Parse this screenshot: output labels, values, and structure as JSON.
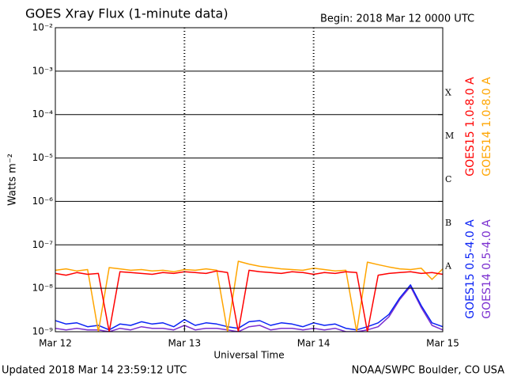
{
  "chart_data": {
    "type": "line",
    "title": "GOES Xray Flux (1-minute data)",
    "subtitle": "Begin:  2018 Mar 12 0000 UTC",
    "ylabel": "Watts m⁻²",
    "xlabel": "Universal Time",
    "footer_left": "Updated 2018 Mar 14 23:59:12 UTC",
    "footer_right": "NOAA/SWPC Boulder, CO USA",
    "yscale": "log",
    "grid": true,
    "legend_position": "right",
    "x": [
      0,
      2,
      4,
      6,
      8,
      10,
      12,
      14,
      16,
      18,
      20,
      22,
      24,
      26,
      28,
      30,
      32,
      34,
      36,
      38,
      40,
      42,
      44,
      46,
      48,
      50,
      52,
      54,
      56,
      58,
      60,
      62,
      64,
      66,
      68,
      70,
      72
    ],
    "xlim": [
      0,
      72
    ],
    "xticks": [
      {
        "value": 0,
        "label": "Mar 12"
      },
      {
        "value": 24,
        "label": "Mar 13"
      },
      {
        "value": 48,
        "label": "Mar 14"
      },
      {
        "value": 72,
        "label": "Mar 15"
      }
    ],
    "ylim": [
      1e-09,
      0.01
    ],
    "yticks": [
      {
        "value": 1e-09,
        "label": "10⁻⁹"
      },
      {
        "value": 1e-08,
        "label": "10⁻⁸"
      },
      {
        "value": 1e-07,
        "label": "10⁻⁷"
      },
      {
        "value": 1e-06,
        "label": "10⁻⁶"
      },
      {
        "value": 1e-05,
        "label": "10⁻⁵"
      },
      {
        "value": 0.0001,
        "label": "10⁻⁴"
      },
      {
        "value": 0.001,
        "label": "10⁻³"
      },
      {
        "value": 0.01,
        "label": "10⁻²"
      }
    ],
    "flare_classes": [
      {
        "value": 1e-08,
        "label": "A"
      },
      {
        "value": 1e-07,
        "label": "B"
      },
      {
        "value": 1e-06,
        "label": "C"
      },
      {
        "value": 1e-05,
        "label": "M"
      },
      {
        "value": 0.0001,
        "label": "X"
      }
    ],
    "series": [
      {
        "name": "GOES14 0.5-4.0 A",
        "color": "#7b2fd0",
        "values": [
          1.2e-09,
          1.1e-09,
          1.2e-09,
          1.1e-09,
          1.1e-09,
          1e-09,
          1.2e-09,
          1.1e-09,
          1.3e-09,
          1.2e-09,
          1.2e-09,
          1.1e-09,
          1.4e-09,
          1.1e-09,
          1.2e-09,
          1.2e-09,
          1.1e-09,
          1e-09,
          1.3e-09,
          1.4e-09,
          1.1e-09,
          1.2e-09,
          1.2e-09,
          1.1e-09,
          1.2e-09,
          1.1e-09,
          1.2e-09,
          1e-09,
          1e-09,
          1.1e-09,
          1.3e-09,
          2.2e-09,
          5.5e-09,
          1.1e-08,
          3.6e-09,
          1.4e-09,
          1.1e-09
        ]
      },
      {
        "name": "GOES15 0.5-4.0 A",
        "color": "#0a22f5",
        "values": [
          1.8e-09,
          1.5e-09,
          1.6e-09,
          1.3e-09,
          1.4e-09,
          1.1e-09,
          1.5e-09,
          1.4e-09,
          1.7e-09,
          1.5e-09,
          1.6e-09,
          1.3e-09,
          1.9e-09,
          1.4e-09,
          1.6e-09,
          1.5e-09,
          1.3e-09,
          1.2e-09,
          1.7e-09,
          1.8e-09,
          1.4e-09,
          1.6e-09,
          1.5e-09,
          1.3e-09,
          1.6e-09,
          1.4e-09,
          1.5e-09,
          1.2e-09,
          1.1e-09,
          1.3e-09,
          1.6e-09,
          2.5e-09,
          6e-09,
          1.2e-08,
          4e-09,
          1.6e-09,
          1.3e-09
        ]
      },
      {
        "name": "GOES14 1.0-8.0 A",
        "color": "#ffa500",
        "values": [
          2.6e-08,
          2.8e-08,
          2.5e-08,
          2.7e-08,
          1e-09,
          3e-08,
          2.8e-08,
          2.6e-08,
          2.7e-08,
          2.5e-08,
          2.6e-08,
          2.4e-08,
          2.7e-08,
          2.6e-08,
          2.8e-08,
          2.6e-08,
          1e-09,
          4.2e-08,
          3.6e-08,
          3.2e-08,
          3e-08,
          2.8e-08,
          2.7e-08,
          2.6e-08,
          2.9e-08,
          2.7e-08,
          2.5e-08,
          2.6e-08,
          1e-09,
          4e-08,
          3.5e-08,
          3.1e-08,
          2.8e-08,
          2.7e-08,
          2.9e-08,
          1.6e-08,
          2.8e-08
        ]
      },
      {
        "name": "GOES15 1.0-8.0 A",
        "color": "#ff0000",
        "values": [
          2.2e-08,
          2e-08,
          2.3e-08,
          2.1e-08,
          2.2e-08,
          1e-09,
          2.4e-08,
          2.3e-08,
          2.2e-08,
          2.1e-08,
          2.3e-08,
          2.2e-08,
          2.4e-08,
          2.3e-08,
          2.2e-08,
          2.5e-08,
          2.3e-08,
          1e-09,
          2.6e-08,
          2.4e-08,
          2.3e-08,
          2.2e-08,
          2.4e-08,
          2.3e-08,
          2.1e-08,
          2.3e-08,
          2.2e-08,
          2.4e-08,
          2.3e-08,
          1e-09,
          2e-08,
          2.2e-08,
          2.3e-08,
          2.4e-08,
          2.2e-08,
          2.3e-08,
          2.1e-08
        ]
      }
    ]
  }
}
